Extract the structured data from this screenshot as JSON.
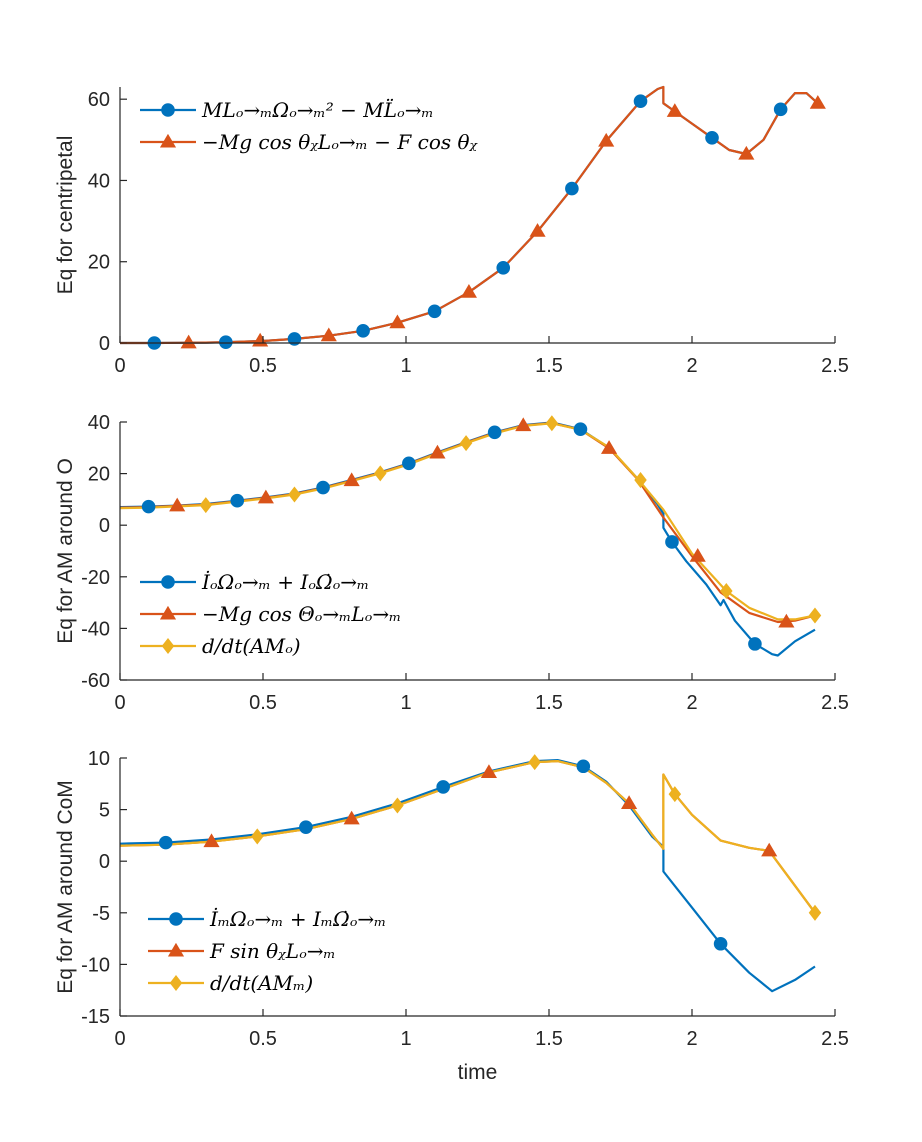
{
  "colors": {
    "blue": "#0072BD",
    "orange": "#D95319",
    "yellow": "#EDB120",
    "axis": "#262626"
  },
  "chart_data": [
    {
      "type": "line",
      "ylabel": "Eq for centripetal",
      "xlabel": "",
      "xlim": [
        0,
        2.5
      ],
      "ylim": [
        0,
        63
      ],
      "xticks": [
        "0",
        "0.5",
        "1",
        "1.5",
        "2",
        "2.5"
      ],
      "yticks": [
        "0",
        "20",
        "40",
        "60"
      ],
      "legend_location": "top-left",
      "series": [
        {
          "name": "ML_{O→M}Ω_{O→M}^2 − M L̈_{O→M}",
          "legend_text": "MLₒ→ₘΩₒ→ₘ² − ML̈ₒ→ₘ",
          "color": "blue",
          "marker": "circle",
          "x": [
            0,
            0.12,
            0.2,
            0.3,
            0.37,
            0.5,
            0.61,
            0.73,
            0.85,
            0.97,
            1.1,
            1.22,
            1.34,
            1.46,
            1.58,
            1.7,
            1.82,
            1.88,
            1.9,
            1.9,
            1.94,
            2.0,
            2.07,
            2.13,
            2.19,
            2.25,
            2.31,
            2.36,
            2.4,
            2.44
          ],
          "y": [
            0,
            0,
            0.05,
            0.1,
            0.2,
            0.5,
            1.0,
            1.8,
            3.0,
            5.0,
            7.8,
            12.5,
            18.5,
            27.5,
            38,
            49.7,
            59.5,
            62.5,
            63,
            59,
            57,
            54,
            50.5,
            47.5,
            46.5,
            50,
            57.5,
            61.5,
            61.5,
            59
          ],
          "marker_x": [
            0.12,
            0.37,
            0.61,
            0.85,
            1.1,
            1.34,
            1.58,
            1.82,
            2.07,
            2.31
          ],
          "marker_y": [
            0,
            0.2,
            1.0,
            3.0,
            7.8,
            18.5,
            38,
            59.5,
            50.5,
            57.5
          ]
        },
        {
          "name": "−Mg cosθ_F L_{O→M} − F cosθ_F",
          "legend_text": "−Mg cos θᵪLₒ→ₘ − F cos θᵪ",
          "color": "orange",
          "marker": "triangle",
          "x": [
            0,
            0.12,
            0.2,
            0.3,
            0.37,
            0.5,
            0.61,
            0.73,
            0.85,
            0.97,
            1.1,
            1.22,
            1.34,
            1.46,
            1.58,
            1.7,
            1.82,
            1.88,
            1.9,
            1.9,
            1.94,
            2.0,
            2.07,
            2.13,
            2.19,
            2.25,
            2.31,
            2.36,
            2.4,
            2.44
          ],
          "y": [
            0,
            0,
            0.05,
            0.1,
            0.2,
            0.5,
            1.0,
            1.8,
            3.0,
            5.0,
            7.8,
            12.5,
            18.5,
            27.5,
            38,
            49.7,
            59.5,
            62.5,
            63,
            59,
            57,
            54,
            50.5,
            47.5,
            46.5,
            50,
            57.5,
            61.5,
            61.5,
            59
          ],
          "marker_x": [
            0.24,
            0.49,
            0.73,
            0.97,
            1.22,
            1.46,
            1.7,
            1.94,
            2.19,
            2.44
          ],
          "marker_y": [
            0.05,
            0.5,
            1.8,
            5.0,
            12.5,
            27.5,
            49.7,
            57,
            46.5,
            59
          ]
        }
      ]
    },
    {
      "type": "line",
      "ylabel": "Eq for AM around O",
      "xlabel": "",
      "xlim": [
        0,
        2.5
      ],
      "ylim": [
        -60,
        40
      ],
      "xticks": [
        "0",
        "0.5",
        "1",
        "1.5",
        "2",
        "2.5"
      ],
      "yticks": [
        "-60",
        "-40",
        "-20",
        "0",
        "20",
        "40"
      ],
      "legend_location": "bottom-left",
      "series": [
        {
          "name": "İ_O Ω_{O→M} + I_O Ω̇_{O→M}",
          "legend_text": "İₒΩₒ→ₘ + IₒΩ̇ₒ→ₘ",
          "color": "blue",
          "marker": "circle",
          "x": [
            0,
            0.1,
            0.2,
            0.3,
            0.41,
            0.51,
            0.61,
            0.71,
            0.81,
            0.91,
            1.01,
            1.11,
            1.21,
            1.31,
            1.41,
            1.51,
            1.61,
            1.71,
            1.81,
            1.88,
            1.9,
            1.9,
            1.93,
            1.98,
            2.05,
            2.1,
            2.11,
            2.15,
            2.22,
            2.28,
            2.3,
            2.36,
            2.43
          ],
          "y": [
            7.0,
            7.2,
            7.6,
            8.2,
            9.5,
            10.8,
            12.3,
            14.6,
            17.5,
            20.5,
            24.0,
            28.2,
            32.2,
            36.0,
            38.8,
            39.8,
            37.2,
            30.0,
            18.0,
            8.0,
            4.5,
            -1.0,
            -6.5,
            -14.0,
            -23.0,
            -31.0,
            -29.0,
            -37.0,
            -46.0,
            -50.0,
            -50.5,
            -45.0,
            -40.5
          ],
          "marker_x": [
            0.1,
            0.41,
            0.71,
            1.01,
            1.31,
            1.61,
            1.93,
            2.22
          ],
          "marker_y": [
            7.2,
            9.5,
            14.6,
            24.0,
            36.0,
            37.2,
            -6.5,
            -46.0
          ]
        },
        {
          "name": "−Mg cosΘ_{O→M} L_{O→M}",
          "legend_text": "−Mg cos Θₒ→ₘLₒ→ₘ",
          "color": "orange",
          "marker": "triangle",
          "x": [
            0,
            0.1,
            0.2,
            0.3,
            0.41,
            0.51,
            0.61,
            0.71,
            0.81,
            0.91,
            1.01,
            1.11,
            1.21,
            1.31,
            1.41,
            1.51,
            1.61,
            1.71,
            1.81,
            1.9,
            2.0,
            2.1,
            2.2,
            2.3,
            2.36,
            2.43
          ],
          "y": [
            6.8,
            7.0,
            7.5,
            8.0,
            9.3,
            10.6,
            12.1,
            14.4,
            17.3,
            20.3,
            23.8,
            28.0,
            32.0,
            35.8,
            38.6,
            39.6,
            37.0,
            29.8,
            17.8,
            3.0,
            -12.0,
            -26.0,
            -34.0,
            -37.5,
            -37.0,
            -35.0
          ],
          "marker_x": [
            0.2,
            0.51,
            0.81,
            1.11,
            1.41,
            1.71,
            2.02,
            2.33
          ],
          "marker_y": [
            7.5,
            10.6,
            17.3,
            28.0,
            38.6,
            29.8,
            -12.0,
            -37.5
          ]
        },
        {
          "name": "d/dt(AM_O)",
          "legend_text": "d/dt(AMₒ)",
          "color": "yellow",
          "marker": "diamond",
          "x": [
            0,
            0.1,
            0.2,
            0.3,
            0.41,
            0.51,
            0.61,
            0.71,
            0.81,
            0.91,
            1.01,
            1.11,
            1.21,
            1.31,
            1.41,
            1.51,
            1.61,
            1.71,
            1.81,
            1.9,
            2.0,
            2.12,
            2.2,
            2.3,
            2.36,
            2.43
          ],
          "y": [
            6.6,
            6.8,
            7.3,
            7.8,
            9.1,
            10.4,
            11.9,
            14.2,
            17.1,
            20.1,
            23.6,
            27.8,
            31.8,
            35.6,
            38.5,
            39.5,
            37.0,
            30.2,
            18.0,
            6.0,
            -11.0,
            -25.5,
            -32.0,
            -36.5,
            -36.5,
            -35.0
          ],
          "marker_x": [
            0.3,
            0.61,
            0.91,
            1.21,
            1.51,
            1.82,
            2.12,
            2.43
          ],
          "marker_y": [
            7.8,
            11.9,
            20.1,
            31.8,
            39.5,
            17.5,
            -25.5,
            -35.0
          ]
        }
      ]
    },
    {
      "type": "line",
      "ylabel": "Eq for AM around CoM",
      "xlabel": "time",
      "xlim": [
        0,
        2.5
      ],
      "ylim": [
        -15,
        10
      ],
      "xticks": [
        "0",
        "0.5",
        "1",
        "1.5",
        "2",
        "2.5"
      ],
      "yticks": [
        "-15",
        "-10",
        "-5",
        "0",
        "5",
        "10"
      ],
      "legend_location": "bottom-left",
      "series": [
        {
          "name": "İ_M Ω_{O→M} + I_M Ω̇_{O→M}",
          "legend_text": "İₘΩₒ→ₘ + IₘΩ̇ₒ→ₘ",
          "color": "blue",
          "marker": "circle",
          "x": [
            0,
            0.16,
            0.32,
            0.48,
            0.65,
            0.81,
            0.97,
            1.13,
            1.29,
            1.45,
            1.53,
            1.62,
            1.7,
            1.78,
            1.86,
            1.9,
            1.9,
            2.0,
            2.1,
            2.2,
            2.28,
            2.36,
            2.43
          ],
          "y": [
            1.7,
            1.8,
            2.1,
            2.6,
            3.3,
            4.3,
            5.6,
            7.2,
            8.7,
            9.7,
            9.8,
            9.2,
            7.7,
            5.4,
            2.4,
            1.4,
            -1.0,
            -4.5,
            -8.0,
            -10.8,
            -12.6,
            -11.5,
            -10.2
          ],
          "marker_x": [
            0.16,
            0.65,
            1.13,
            1.62,
            2.1
          ],
          "marker_y": [
            1.8,
            3.3,
            7.2,
            9.2,
            -8.0
          ]
        },
        {
          "name": "F sinθ_F L_{O→M}",
          "legend_text": "F sin θᵪLₒ→ₘ",
          "color": "orange",
          "marker": "triangle",
          "x": [
            0,
            0.16,
            0.32,
            0.48,
            0.65,
            0.81,
            0.97,
            1.13,
            1.29,
            1.45,
            1.53,
            1.62,
            1.7,
            1.78,
            1.86,
            1.9,
            1.9,
            1.94,
            2.0,
            2.1,
            2.2,
            2.27,
            2.35,
            2.43
          ],
          "y": [
            1.5,
            1.6,
            1.9,
            2.4,
            3.1,
            4.1,
            5.4,
            7.0,
            8.6,
            9.6,
            9.7,
            9.1,
            7.6,
            5.6,
            2.6,
            1.2,
            8.4,
            6.5,
            4.5,
            2.0,
            1.3,
            1.0,
            -2.0,
            -5.0
          ],
          "marker_x": [
            0.32,
            0.81,
            1.29,
            1.78,
            2.27
          ],
          "marker_y": [
            1.9,
            4.1,
            8.6,
            5.6,
            1.0
          ]
        },
        {
          "name": "d/dt(AM_M)",
          "legend_text": "d/dt(AMₘ)",
          "color": "yellow",
          "marker": "diamond",
          "x": [
            0,
            0.16,
            0.32,
            0.48,
            0.65,
            0.81,
            0.97,
            1.13,
            1.29,
            1.45,
            1.53,
            1.62,
            1.7,
            1.78,
            1.86,
            1.9,
            1.9,
            1.94,
            2.0,
            2.1,
            2.2,
            2.27,
            2.35,
            2.43
          ],
          "y": [
            1.5,
            1.6,
            1.9,
            2.4,
            3.1,
            4.1,
            5.4,
            7.0,
            8.6,
            9.6,
            9.7,
            9.1,
            7.6,
            5.6,
            2.6,
            1.2,
            8.4,
            6.5,
            4.5,
            2.0,
            1.3,
            1.0,
            -2.0,
            -5.0
          ],
          "marker_x": [
            0.48,
            0.97,
            1.45,
            1.94,
            2.43
          ],
          "marker_y": [
            2.4,
            5.4,
            9.6,
            6.5,
            -5.0
          ]
        }
      ]
    }
  ]
}
